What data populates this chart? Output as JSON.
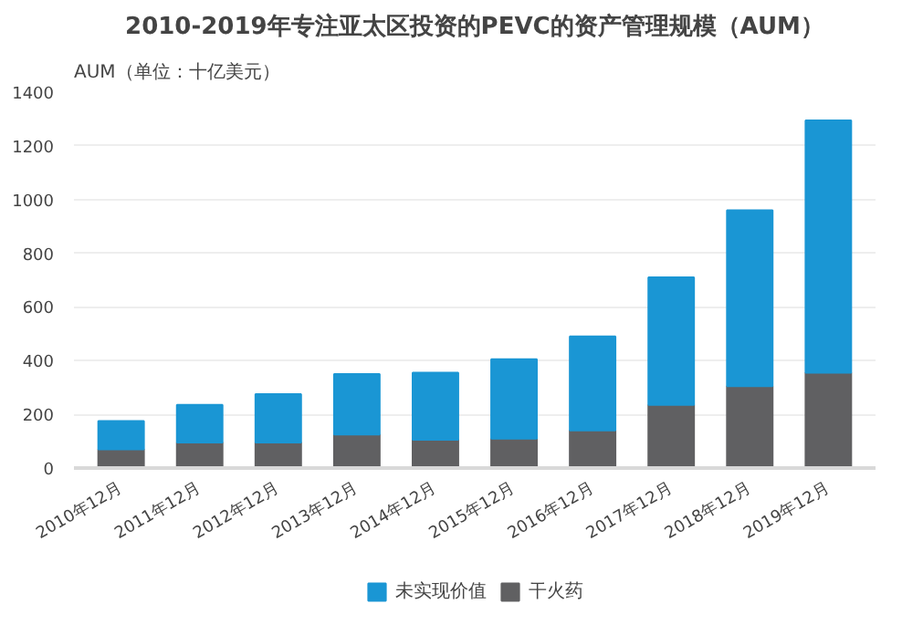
{
  "chart_data": {
    "type": "bar",
    "stacked": true,
    "title": "2010-2019年专注亚太区投资的PEVC的资产管理规模（AUM）",
    "ylabel": "AUM（单位：十亿美元）",
    "categories": [
      "2010年12月",
      "2011年12月",
      "2012年12月",
      "2013年12月",
      "2014年12月",
      "2015年12月",
      "2016年12月",
      "2017年12月",
      "2018年12月",
      "2019年12月"
    ],
    "series": [
      {
        "name": "干火药",
        "color": "#606062",
        "values": [
          70,
          95,
          95,
          125,
          105,
          110,
          140,
          235,
          305,
          355
        ]
      },
      {
        "name": "未实现价值",
        "color": "#1a96d4",
        "values": [
          105,
          140,
          180,
          225,
          250,
          295,
          350,
          475,
          655,
          940
        ]
      }
    ],
    "ylim": [
      0,
      1400
    ],
    "yticks": [
      0,
      200,
      400,
      600,
      800,
      1000,
      1200,
      1400
    ],
    "grid": "y",
    "legend": "bottom"
  }
}
